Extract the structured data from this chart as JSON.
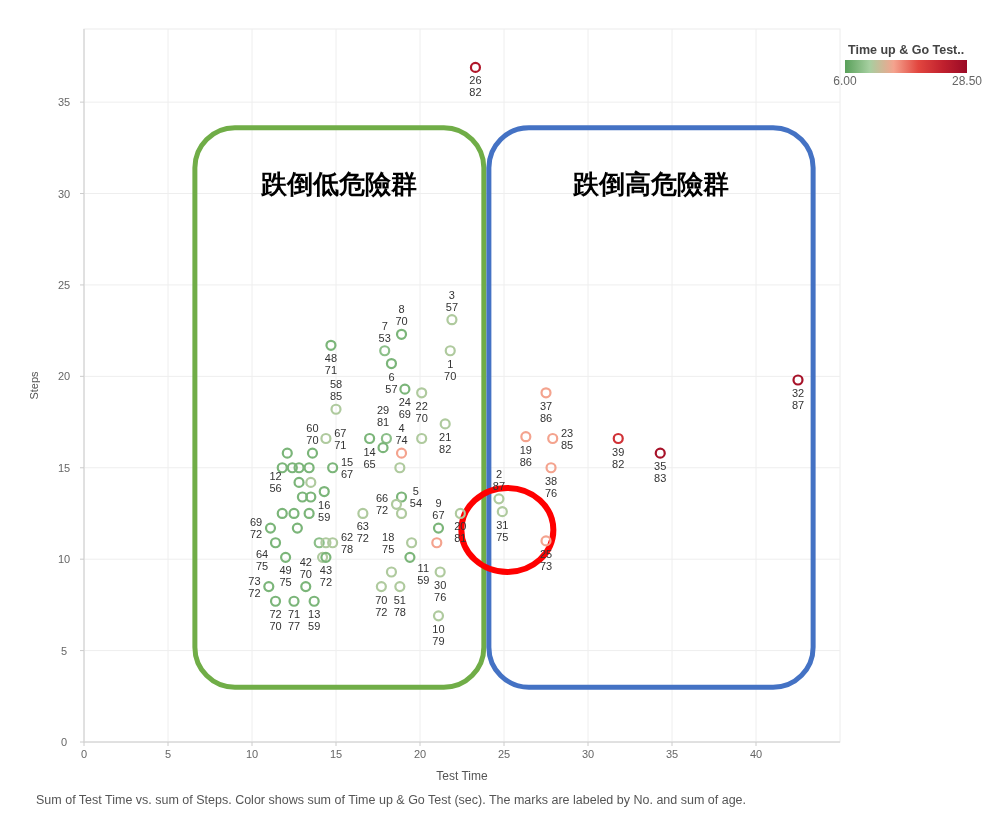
{
  "chart_data": {
    "type": "scatter",
    "xlabel": "Test Time",
    "ylabel": "Steps",
    "clabel": "Time up & Go Test..",
    "clim": [
      6,
      28.5
    ],
    "cticks": [
      {
        "value": 6,
        "label": "6.00"
      },
      {
        "value": 28.5,
        "label": "28.50"
      }
    ],
    "xlim": [
      0,
      45
    ],
    "ylim": [
      0,
      39
    ],
    "xticks": [
      0,
      5,
      10,
      15,
      20,
      25,
      30,
      35,
      40
    ],
    "yticks": [
      0,
      5,
      10,
      15,
      20,
      25,
      30,
      35
    ],
    "grid": true,
    "marker": "circle",
    "annotations": [
      "跌倒低危險群",
      "跌倒高危險群",
      "Sum of Test Time vs. sum of Steps.  Color shows sum of Time up & Go Test (sec).  The marks are labeled by No. and sum of age."
    ],
    "series": [
      {
        "type": "scatter",
        "x": [
          21.9,
          18.9,
          14.7,
          17.9,
          21.8,
          18.3,
          19.1,
          20.1,
          15.0,
          21.5,
          14.4,
          17.0,
          18.0,
          20.1,
          17.8,
          18.9,
          18.8,
          12.1,
          13.6,
          11.8,
          12.4,
          12.8,
          13.4,
          14.8,
          12.8,
          13.5,
          13.0,
          13.5,
          14.3,
          11.8,
          12.5,
          13.4,
          11.1,
          12.7,
          11.4,
          14.0,
          14.4,
          14.8,
          12.0,
          14.2,
          14.4,
          11.0,
          13.2,
          11.4,
          12.5,
          13.7,
          16.6,
          18.9,
          18.6,
          18.9,
          21.1,
          21.0,
          22.4,
          19.5,
          19.4,
          18.3,
          17.7,
          18.8,
          21.2,
          21.1,
          27.5,
          26.3,
          27.9,
          27.8,
          24.7,
          24.9,
          27.5,
          31.8,
          34.3,
          42.5,
          23.3
        ],
        "values": [
          23.1,
          22.3,
          21.7,
          21.4,
          21.4,
          20.7,
          19.3,
          19.1,
          18.2,
          17.4,
          16.6,
          16.6,
          16.6,
          16.6,
          16.1,
          15.8,
          15.0,
          15.8,
          15.8,
          15.0,
          15.0,
          15.0,
          15.0,
          15.0,
          14.2,
          14.2,
          13.4,
          13.4,
          13.7,
          12.5,
          12.5,
          12.5,
          11.7,
          11.7,
          10.9,
          10.9,
          10.9,
          10.9,
          10.1,
          10.1,
          10.1,
          8.5,
          8.5,
          7.7,
          7.7,
          7.7,
          12.5,
          13.4,
          13.0,
          12.5,
          11.7,
          10.9,
          12.5,
          10.9,
          10.1,
          9.3,
          8.5,
          8.5,
          9.3,
          6.9,
          19.1,
          16.7,
          16.6,
          15.0,
          13.3,
          12.6,
          11.0,
          16.6,
          15.8,
          19.8,
          36.9
        ],
        "cvalues": [
          11,
          8,
          8,
          9,
          11,
          8,
          8,
          11,
          11,
          11,
          11,
          8,
          9,
          11,
          8,
          15,
          11,
          8,
          8,
          8,
          8,
          8,
          8,
          8,
          8,
          11,
          8,
          8,
          8,
          8,
          8,
          8,
          8,
          8,
          8,
          9,
          11,
          11,
          8,
          11,
          8,
          8,
          8,
          8,
          8,
          8,
          11,
          8,
          11,
          11,
          8,
          15,
          11,
          11,
          8,
          11,
          11,
          11,
          11,
          11,
          15,
          15,
          15,
          15,
          11,
          11,
          15,
          22,
          27,
          27,
          26
        ],
        "value_labels": [
          "3\n57",
          "8\n70",
          "48\n71",
          "7\n53",
          "1\n70",
          "6\n57",
          "24\n69",
          "22\n70",
          "58\n85",
          "21\n82",
          "67\n71",
          "14\n65",
          null,
          null,
          "29\n81",
          "4\n74",
          null,
          null,
          "60\n70",
          null,
          null,
          null,
          null,
          "15\n67",
          "12\n56",
          null,
          null,
          null,
          "16\n59",
          null,
          null,
          null,
          "69\n72",
          null,
          "64\n75",
          null,
          null,
          "62\n78",
          "49\n75",
          null,
          "43\n72",
          "73\n72",
          "42\n70",
          "72\n70",
          "71\n77",
          "13\n59",
          "63\n72",
          "5\n54",
          "66\n72",
          null,
          "9\n67",
          null,
          "20\n81",
          "18\n75",
          "11\n59",
          null,
          "70\n72",
          "51\n78",
          "30\n76",
          "10\n79",
          "37\n86",
          "19\n86",
          "23\n85",
          "38\n76",
          "2\n87",
          "31\n75",
          "25\n73",
          "39\n82",
          "35\n83",
          "32\n87",
          "26\n82"
        ]
      }
    ]
  }
}
